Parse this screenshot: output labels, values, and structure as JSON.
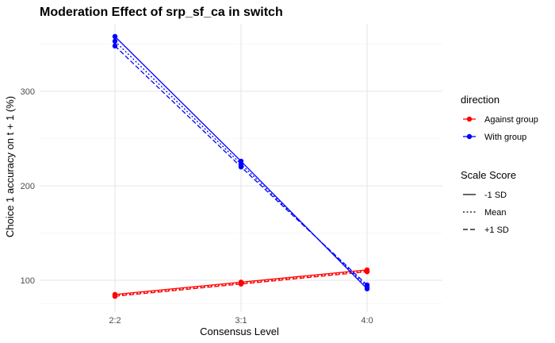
{
  "chart_data": {
    "type": "line",
    "title": "Moderation Effect of srp_sf_ca in switch",
    "xlabel": "Consensus Level",
    "ylabel": "Choice 1 accuracy on t + 1 (%)",
    "categories": [
      "2:2",
      "3:1",
      "4:0"
    ],
    "ylim": [
      75,
      375
    ],
    "yticks": [
      100,
      200,
      300
    ],
    "grid": true,
    "legend_position": "right",
    "legend_color_title": "direction",
    "legend_linetype_title": "Scale Score",
    "colors": {
      "Against group": "#ff0000",
      "With group": "#0000ff"
    },
    "color_legend": [
      {
        "label": "Against group",
        "color": "#ff0000"
      },
      {
        "label": "With group",
        "color": "#0000ff"
      }
    ],
    "linetype_legend": [
      {
        "label": "-1 SD",
        "dash": "solid"
      },
      {
        "label": "Mean",
        "dash": "dotted"
      },
      {
        "label": "+1 SD",
        "dash": "dashed"
      }
    ],
    "series": [
      {
        "name": "Against group -1 SD",
        "direction": "Against group",
        "scale": "-1 SD",
        "values": [
          85,
          98,
          111
        ]
      },
      {
        "name": "Against group Mean",
        "direction": "Against group",
        "scale": "Mean",
        "values": [
          84,
          97,
          110
        ]
      },
      {
        "name": "Against group +1 SD",
        "direction": "Against group",
        "scale": "+1 SD",
        "values": [
          83,
          96,
          109
        ]
      },
      {
        "name": "With group -1 SD",
        "direction": "With group",
        "scale": "-1 SD",
        "values": [
          358,
          226,
          91
        ]
      },
      {
        "name": "With group Mean",
        "direction": "With group",
        "scale": "Mean",
        "values": [
          353,
          223,
          93
        ]
      },
      {
        "name": "With group +1 SD",
        "direction": "With group",
        "scale": "+1 SD",
        "values": [
          348,
          220,
          95
        ]
      }
    ]
  }
}
